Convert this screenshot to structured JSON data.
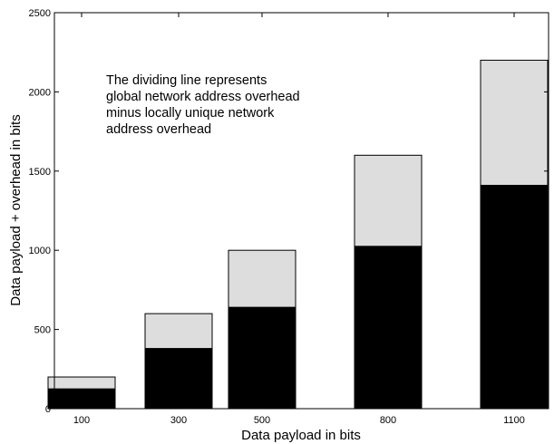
{
  "chart_data": {
    "type": "bar",
    "stacked": true,
    "categories": [
      "100",
      "300",
      "500",
      "800",
      "1100"
    ],
    "x": [
      100,
      300,
      500,
      800,
      1100
    ],
    "series": [
      {
        "values": [
          125,
          380,
          640,
          1025,
          1410
        ],
        "color": "#000000"
      },
      {
        "values": [
          75,
          220,
          360,
          575,
          790
        ],
        "color": "#dddddd"
      }
    ],
    "totals": [
      200,
      600,
      1000,
      1600,
      2200
    ],
    "xlabel": "Data payload in bits",
    "ylabel": "Data payload + overhead in bits",
    "ylim": [
      0,
      2500
    ],
    "yticks": [
      0,
      500,
      1000,
      1500,
      2000,
      2500
    ],
    "grid": false,
    "annotation": [
      "The dividing line represents",
      "global network address overhead",
      "minus locally unique network",
      "address overhead"
    ]
  }
}
